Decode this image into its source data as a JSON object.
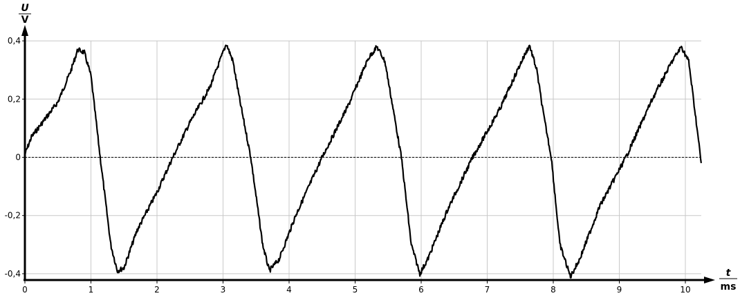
{
  "chart_data": {
    "type": "line",
    "xlabel": "t",
    "xunit": "ms",
    "ylabel": "U",
    "yunit": "V",
    "xlim": [
      0,
      10.24
    ],
    "ylim": [
      -0.4,
      0.4
    ],
    "grid": true,
    "x_ticks": [
      0,
      1,
      2,
      3,
      4,
      5,
      6,
      7,
      8,
      9,
      10
    ],
    "x_tick_labels": [
      "0",
      "1",
      "2",
      "3",
      "4",
      "5",
      "6",
      "7",
      "8",
      "9",
      "10"
    ],
    "y_ticks": [
      -0.4,
      -0.2,
      0,
      0.2,
      0.4
    ],
    "y_tick_labels": [
      "-0,4",
      "-0,2",
      "0",
      "0,2",
      "0,4"
    ],
    "zero_line": "dashed",
    "line_color": "#000000",
    "grid_color": "#c8c8c8",
    "series": [
      {
        "points": [
          [
            0,
            0.01
          ],
          [
            0.1,
            0.07
          ],
          [
            0.3,
            0.13
          ],
          [
            0.5,
            0.19
          ],
          [
            0.7,
            0.3
          ],
          [
            0.8,
            0.37
          ],
          [
            0.9,
            0.36
          ],
          [
            1.0,
            0.28
          ],
          [
            1.14,
            0
          ],
          [
            1.3,
            -0.3
          ],
          [
            1.4,
            -0.39
          ],
          [
            1.5,
            -0.38
          ],
          [
            1.7,
            -0.25
          ],
          [
            2.0,
            -0.12
          ],
          [
            2.24,
            0
          ],
          [
            2.5,
            0.12
          ],
          [
            2.8,
            0.24
          ],
          [
            3.0,
            0.36
          ],
          [
            3.05,
            0.39
          ],
          [
            3.15,
            0.33
          ],
          [
            3.25,
            0.2
          ],
          [
            3.42,
            0
          ],
          [
            3.6,
            -0.3
          ],
          [
            3.7,
            -0.39
          ],
          [
            3.85,
            -0.35
          ],
          [
            4.1,
            -0.2
          ],
          [
            4.5,
            0
          ],
          [
            4.9,
            0.18
          ],
          [
            5.2,
            0.34
          ],
          [
            5.33,
            0.38
          ],
          [
            5.45,
            0.33
          ],
          [
            5.55,
            0.2
          ],
          [
            5.7,
            0
          ],
          [
            5.85,
            -0.3
          ],
          [
            5.98,
            -0.4
          ],
          [
            6.1,
            -0.35
          ],
          [
            6.4,
            -0.18
          ],
          [
            6.78,
            0
          ],
          [
            7.2,
            0.17
          ],
          [
            7.5,
            0.32
          ],
          [
            7.64,
            0.385
          ],
          [
            7.75,
            0.3
          ],
          [
            7.85,
            0.15
          ],
          [
            7.97,
            0
          ],
          [
            8.1,
            -0.3
          ],
          [
            8.26,
            -0.41
          ],
          [
            8.4,
            -0.35
          ],
          [
            8.7,
            -0.17
          ],
          [
            9.1,
            0
          ],
          [
            9.5,
            0.2
          ],
          [
            9.8,
            0.33
          ],
          [
            9.94,
            0.38
          ],
          [
            10.05,
            0.33
          ],
          [
            10.15,
            0.15
          ],
          [
            10.24,
            -0.02
          ]
        ]
      }
    ]
  }
}
